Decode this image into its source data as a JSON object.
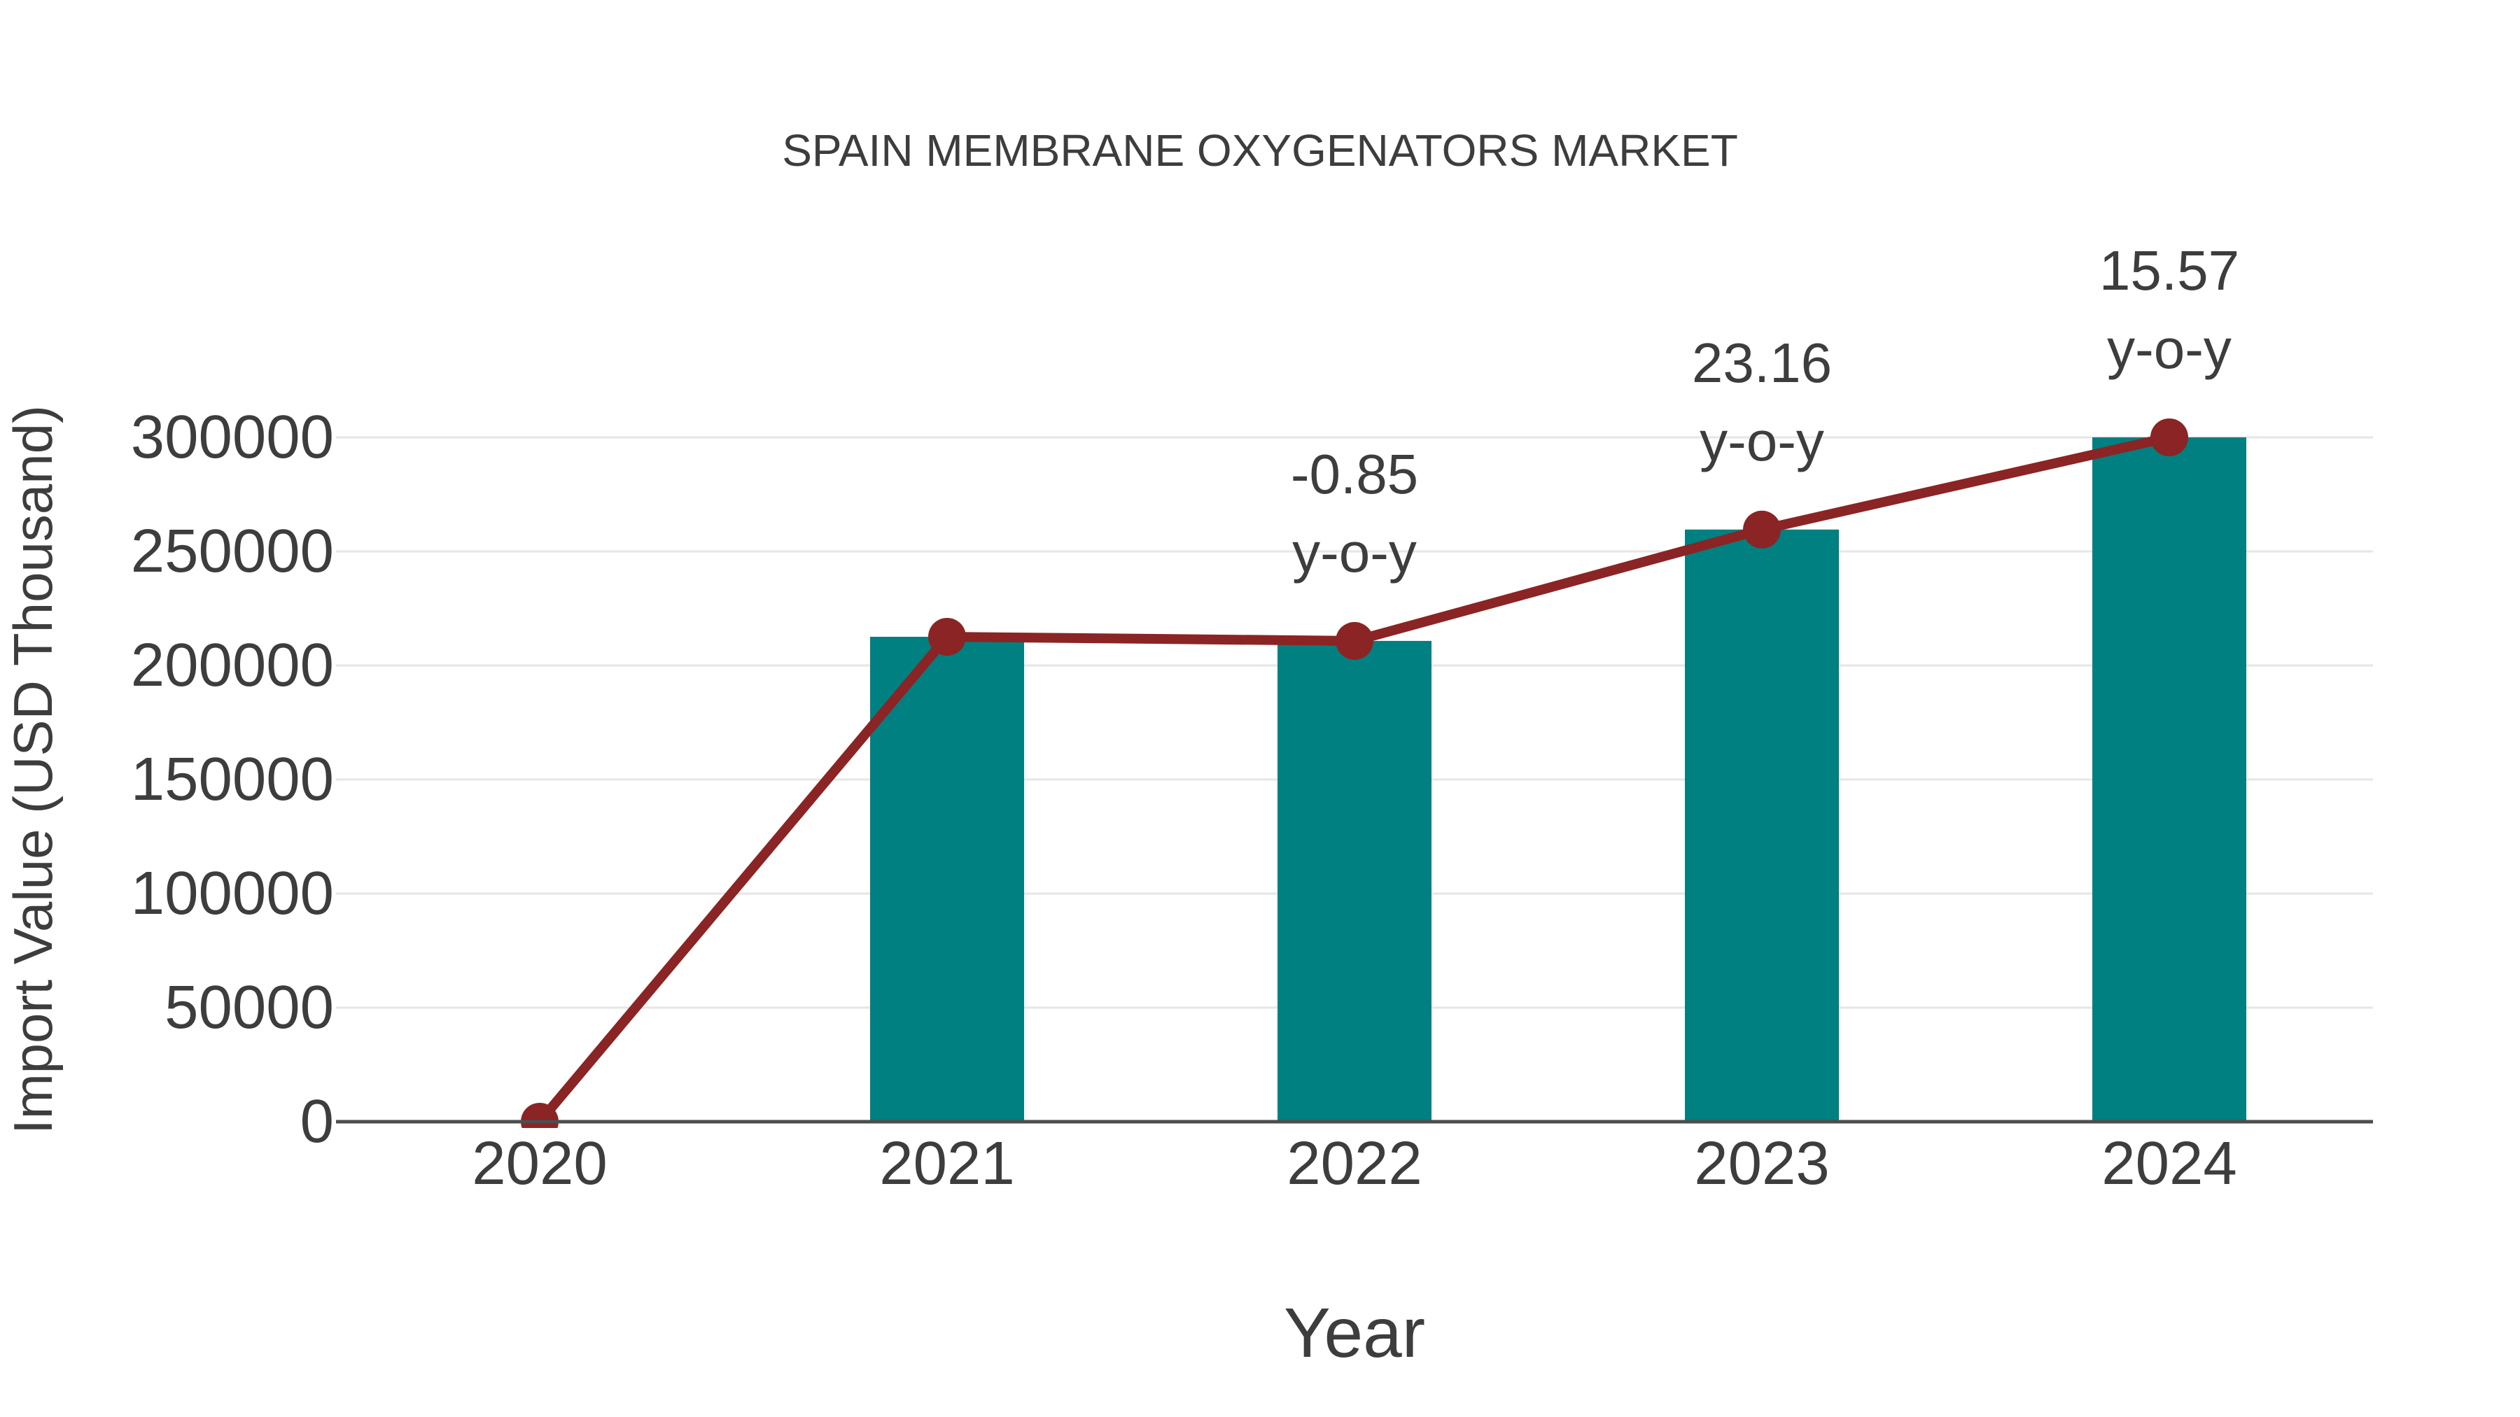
{
  "figure": {
    "title": "SPAIN MEMBRANE OXYGENATORS MARKET",
    "x_axis_title": "Year",
    "y_axis_title": "Import Value (USD Thousand)"
  },
  "colors": {
    "bar": "#008080",
    "line": "#8b2424",
    "text": "#3d3d3d",
    "gridline": "#e6e6e6",
    "axis_line": "#4d4d4d",
    "background": "#ffffff"
  },
  "chart_data": {
    "type": "bar",
    "title": "SPAIN MEMBRANE OXYGENATORS MARKET",
    "xlabel": "Year",
    "ylabel": "Import Value (USD Thousand)",
    "categories": [
      "2020",
      "2021",
      "2022",
      "2023",
      "2024"
    ],
    "series": [
      {
        "name": "Import Value",
        "type": "bar",
        "values": [
          0,
          212576,
          210769,
          259583,
          300000
        ]
      },
      {
        "name": "Import Value trend",
        "type": "line",
        "values": [
          0,
          212576,
          210769,
          259583,
          300000
        ]
      }
    ],
    "annotations": [
      {
        "category": "2022",
        "value": "-0.85",
        "suffix": "y-o-y"
      },
      {
        "category": "2023",
        "value": "23.16",
        "suffix": "y-o-y"
      },
      {
        "category": "2024",
        "value": "15.57",
        "suffix": "y-o-y"
      }
    ],
    "ytick_labels": [
      "0",
      "50000",
      "100000",
      "150000",
      "200000",
      "250000",
      "300000"
    ],
    "ylim": [
      0,
      340000
    ],
    "grid": "horizontal",
    "legend": "none"
  }
}
